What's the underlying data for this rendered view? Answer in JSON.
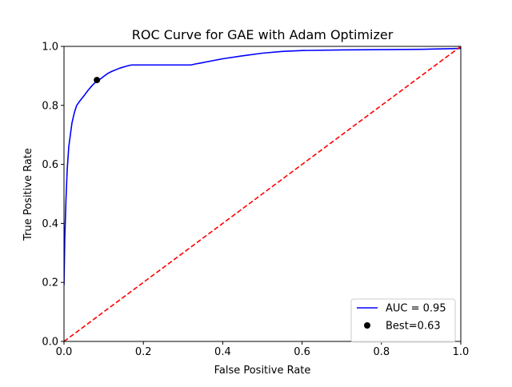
{
  "chart_data": {
    "type": "line",
    "title": "ROC Curve for GAE with Adam Optimizer",
    "xlabel": "False Positive Rate",
    "ylabel": "True Positive Rate",
    "xlim": [
      0.0,
      1.0
    ],
    "ylim": [
      0.0,
      1.0
    ],
    "xticks": [
      0.0,
      0.2,
      0.4,
      0.6,
      0.8,
      1.0
    ],
    "yticks": [
      0.0,
      0.2,
      0.4,
      0.6,
      0.8,
      1.0
    ],
    "xtick_labels": [
      "0.0",
      "0.2",
      "0.4",
      "0.6",
      "0.8",
      "1.0"
    ],
    "ytick_labels": [
      "0.0",
      "0.2",
      "0.4",
      "0.6",
      "0.8",
      "1.0"
    ],
    "grid": false,
    "legend_position": "lower-right",
    "series": [
      {
        "name": "AUC = 0.95",
        "kind": "line",
        "color": "#0000ff",
        "x": [
          0.0,
          0.002,
          0.005,
          0.008,
          0.012,
          0.016,
          0.02,
          0.026,
          0.032,
          0.04,
          0.05,
          0.06,
          0.07,
          0.08,
          0.09,
          0.1,
          0.11,
          0.12,
          0.14,
          0.16,
          0.17,
          0.2,
          0.25,
          0.3,
          0.32,
          0.33,
          0.35,
          0.4,
          0.45,
          0.5,
          0.55,
          0.6,
          0.7,
          0.8,
          0.9,
          1.0
        ],
        "y": [
          0.19,
          0.35,
          0.48,
          0.58,
          0.66,
          0.7,
          0.74,
          0.775,
          0.8,
          0.815,
          0.832,
          0.85,
          0.866,
          0.88,
          0.888,
          0.898,
          0.908,
          0.915,
          0.926,
          0.934,
          0.937,
          0.937,
          0.937,
          0.937,
          0.937,
          0.94,
          0.945,
          0.958,
          0.968,
          0.977,
          0.983,
          0.986,
          0.988,
          0.989,
          0.99,
          0.993
        ]
      },
      {
        "name": "",
        "kind": "line",
        "style": "dashed",
        "color": "#ff0000",
        "x": [
          0.0,
          1.0
        ],
        "y": [
          0.0,
          1.0
        ]
      },
      {
        "name": "Best=0.63",
        "kind": "scatter",
        "color": "#000000",
        "x": [
          0.083
        ],
        "y": [
          0.886
        ]
      }
    ]
  }
}
